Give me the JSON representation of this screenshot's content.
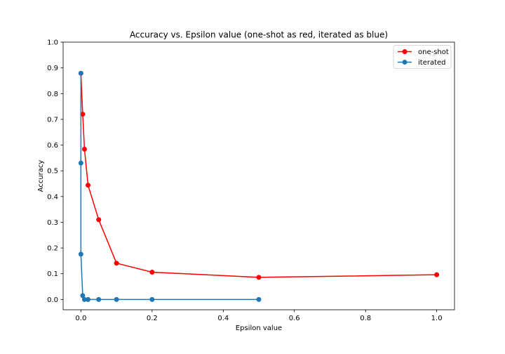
{
  "chart_data": {
    "type": "line",
    "title": "Accuracy vs. Epsilon value (one-shot as red, iterated as blue)",
    "xlabel": "Epsilon value",
    "ylabel": "Accuracy",
    "xlim": [
      -0.05,
      1.05
    ],
    "ylim": [
      -0.04,
      1.0
    ],
    "xticks": [
      0.0,
      0.2,
      0.4,
      0.6,
      0.8,
      1.0
    ],
    "xtick_labels": [
      "0.0",
      "0.2",
      "0.4",
      "0.6",
      "0.8",
      "1.0"
    ],
    "yticks": [
      0.0,
      0.1,
      0.2,
      0.3,
      0.4,
      0.5,
      0.6,
      0.7,
      0.8,
      0.9,
      1.0
    ],
    "ytick_labels": [
      "0.0",
      "0.1",
      "0.2",
      "0.3",
      "0.4",
      "0.5",
      "0.6",
      "0.7",
      "0.8",
      "0.9",
      "1.0"
    ],
    "grid": false,
    "legend_position": "top-right",
    "series": [
      {
        "name": "one-shot",
        "color": "#ff0000",
        "marker": "circle",
        "points": [
          [
            0.0,
            0.879
          ],
          [
            0.005,
            0.72
          ],
          [
            0.01,
            0.584
          ],
          [
            0.02,
            0.444
          ],
          [
            0.05,
            0.31
          ],
          [
            0.1,
            0.141
          ],
          [
            0.2,
            0.106
          ],
          [
            0.5,
            0.086
          ],
          [
            1.0,
            0.096
          ]
        ]
      },
      {
        "name": "iterated",
        "color": "#1f77b4",
        "marker": "circle",
        "points": [
          [
            0.0,
            0.879
          ],
          [
            0.0,
            0.53
          ],
          [
            0.0,
            0.176
          ],
          [
            0.005,
            0.015
          ],
          [
            0.01,
            0.0
          ],
          [
            0.02,
            0.0
          ],
          [
            0.05,
            0.0
          ],
          [
            0.1,
            0.0
          ],
          [
            0.2,
            0.0
          ],
          [
            0.5,
            0.0
          ]
        ]
      }
    ]
  }
}
